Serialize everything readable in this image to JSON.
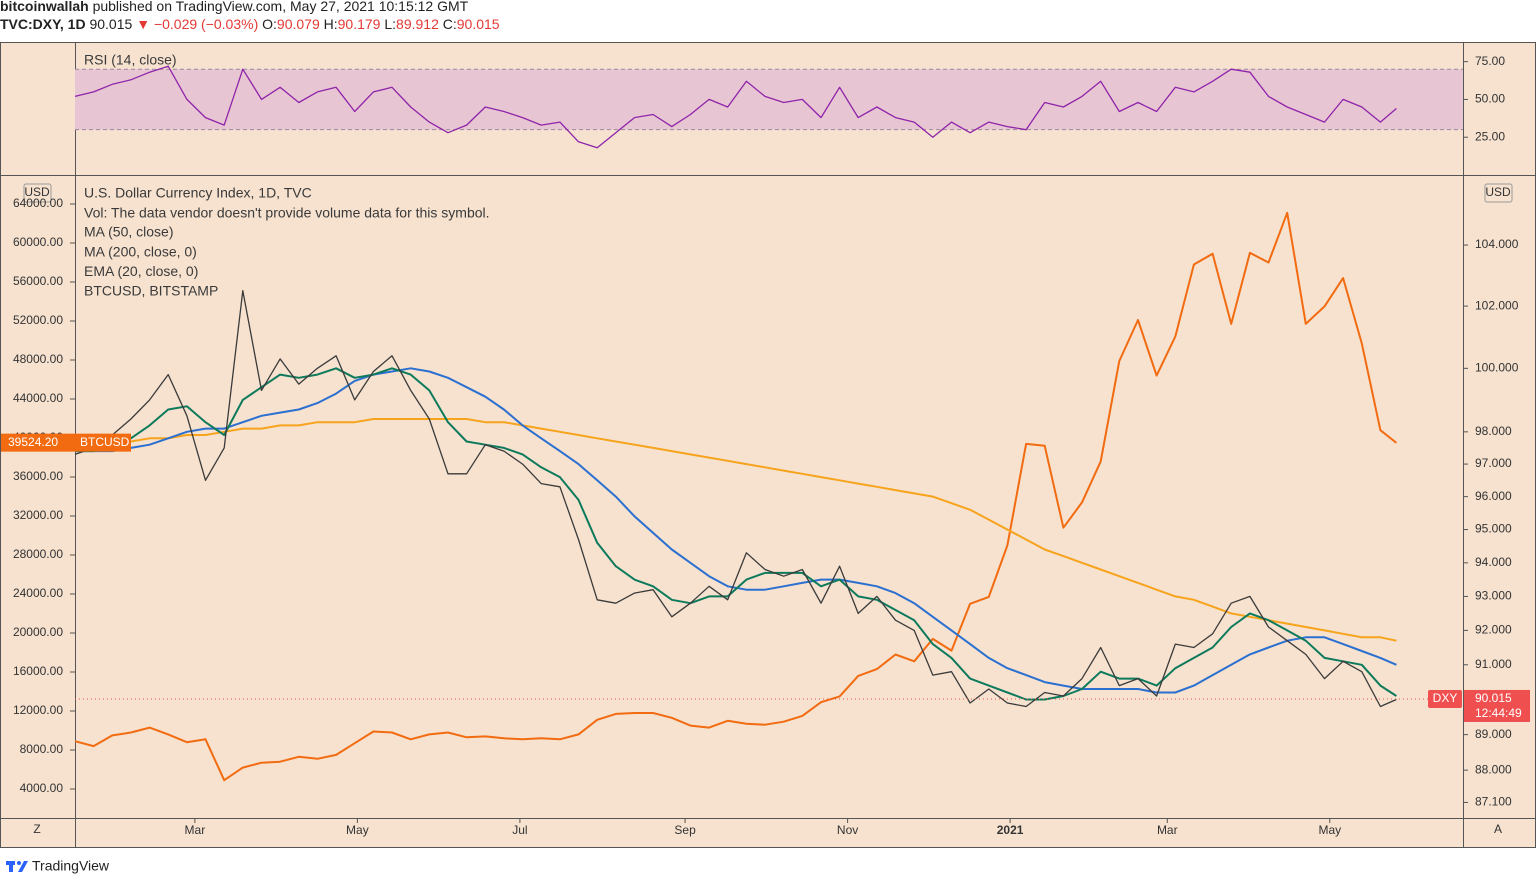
{
  "header": {
    "author": "bitcoinwallah",
    "published": "published on TradingView.com, May 27, 2021 10:15:12 GMT",
    "symbol": "TVC:DXY, 1D",
    "last": 90.015,
    "direction": "▼",
    "change": "−0.029 (−0.03%)",
    "ohlc": [
      {
        "label": "O:",
        "value": 90.079
      },
      {
        "label": "H:",
        "value": 90.179
      },
      {
        "label": "L:",
        "value": 89.912
      },
      {
        "label": "C:",
        "value": 90.015
      }
    ]
  },
  "chart_data": [
    {
      "type": "line",
      "title": "RSI (14, close)",
      "band": [
        30,
        70
      ],
      "band_color": "#e8c5d3",
      "ylim": [
        0,
        88
      ],
      "yticks": [
        {
          "value": 75,
          "label": "75.00"
        },
        {
          "value": 50,
          "label": "50.00"
        },
        {
          "value": 25,
          "label": "25.00"
        }
      ],
      "x": [
        15,
        22,
        29,
        36,
        43,
        50,
        57,
        64,
        71,
        78,
        85,
        92,
        99,
        106,
        113,
        120,
        127,
        134,
        141,
        148,
        155,
        162,
        169,
        176,
        183,
        190,
        197,
        204,
        211,
        218,
        225,
        232,
        239,
        246,
        253,
        260,
        267,
        274,
        281,
        288,
        295,
        302,
        309,
        316,
        323,
        330,
        337,
        344,
        351,
        358,
        365,
        372,
        379,
        386,
        393,
        400,
        407,
        414,
        421,
        428,
        435,
        442,
        449,
        456,
        463,
        470,
        477,
        484,
        491,
        498,
        505,
        511
      ],
      "series": [
        {
          "name": "RSI (14, close)",
          "color": "#8e24aa",
          "values": [
            52,
            55,
            60,
            63,
            68,
            72,
            50,
            38,
            33,
            70,
            50,
            58,
            48,
            55,
            58,
            42,
            55,
            58,
            45,
            35,
            28,
            33,
            45,
            42,
            38,
            33,
            35,
            22,
            18,
            28,
            38,
            40,
            32,
            40,
            50,
            45,
            62,
            52,
            48,
            50,
            38,
            58,
            38,
            45,
            38,
            35,
            25,
            35,
            28,
            35,
            32,
            30,
            48,
            45,
            52,
            62,
            42,
            48,
            42,
            58,
            55,
            62,
            70,
            68,
            52,
            45,
            40,
            35,
            50,
            45,
            35,
            44
          ]
        }
      ]
    },
    {
      "type": "line",
      "title": "U.S. Dollar Currency Index, 1D, TVC",
      "note": "Vol: The data vendor doesn't provide volume data for this symbol.",
      "unit_labels": [
        "USD",
        "USD"
      ],
      "axis_buttons": [
        "Z",
        "A"
      ],
      "y_log": true,
      "grid": false,
      "xlim": [
        15,
        536
      ],
      "xticks": [
        {
          "value": 60,
          "label": "Mar"
        },
        {
          "value": 121,
          "label": "May"
        },
        {
          "value": 182,
          "label": "Jul"
        },
        {
          "value": 244,
          "label": "Sep"
        },
        {
          "value": 305,
          "label": "Nov"
        },
        {
          "value": 366,
          "label": "2021"
        },
        {
          "value": 425,
          "label": "Mar"
        },
        {
          "value": 486,
          "label": "May"
        }
      ],
      "ylim": [
        86.67,
        106.31
      ],
      "yticks": [
        {
          "value": 104,
          "label": "104.000"
        },
        {
          "value": 102,
          "label": "102.000"
        },
        {
          "value": 100,
          "label": "100.000"
        },
        {
          "value": 98,
          "label": "98.000"
        },
        {
          "value": 97,
          "label": "97.000"
        },
        {
          "value": 96,
          "label": "96.000"
        },
        {
          "value": 95,
          "label": "95.000"
        },
        {
          "value": 94,
          "label": "94.000"
        },
        {
          "value": 93,
          "label": "93.000"
        },
        {
          "value": 92,
          "label": "92.000"
        },
        {
          "value": 91,
          "label": "91.000"
        },
        {
          "value": 89,
          "label": "89.000"
        },
        {
          "value": 88,
          "label": "88.000"
        },
        {
          "value": 87.1,
          "label": "87.100"
        }
      ],
      "y2lim": [
        1026,
        66872
      ],
      "y2ticks": [
        {
          "value": 64000,
          "label": "64000.00"
        },
        {
          "value": 60000,
          "label": "60000.00"
        },
        {
          "value": 56000,
          "label": "56000.00"
        },
        {
          "value": 52000,
          "label": "52000.00"
        },
        {
          "value": 48000,
          "label": "48000.00"
        },
        {
          "value": 44000,
          "label": "44000.00"
        },
        {
          "value": 40000,
          "label": "40000.00"
        },
        {
          "value": 36000,
          "label": "36000.00"
        },
        {
          "value": 32000,
          "label": "32000.00"
        },
        {
          "value": 28000,
          "label": "28000.00"
        },
        {
          "value": 24000,
          "label": "24000.00"
        },
        {
          "value": 20000,
          "label": "20000.00"
        },
        {
          "value": 16000,
          "label": "16000.00"
        },
        {
          "value": 12000,
          "label": "12000.00"
        },
        {
          "value": 8000,
          "label": "8000.00"
        },
        {
          "value": 4000,
          "label": "4000.00"
        }
      ],
      "x": [
        15,
        22,
        29,
        36,
        43,
        50,
        57,
        64,
        71,
        78,
        85,
        92,
        99,
        106,
        113,
        120,
        127,
        134,
        141,
        148,
        155,
        162,
        169,
        176,
        183,
        190,
        197,
        204,
        211,
        218,
        225,
        232,
        239,
        246,
        253,
        260,
        267,
        274,
        281,
        288,
        295,
        302,
        309,
        316,
        323,
        330,
        337,
        344,
        351,
        358,
        365,
        372,
        379,
        386,
        393,
        400,
        407,
        414,
        421,
        428,
        435,
        442,
        449,
        456,
        463,
        470,
        477,
        484,
        491,
        498,
        505,
        511
      ],
      "series": [
        {
          "name": "DXY",
          "color": "#3b3b3b",
          "last": 90.015,
          "countdown": "12:44:49",
          "tag_color": "#ef4f4f",
          "values": [
            97.3,
            97.5,
            97.9,
            98.4,
            99.0,
            99.8,
            98.5,
            96.5,
            97.5,
            102.5,
            99.3,
            100.3,
            99.5,
            100.0,
            100.4,
            99.0,
            99.9,
            100.4,
            99.3,
            98.4,
            96.7,
            96.7,
            97.6,
            97.4,
            97.0,
            96.4,
            96.3,
            94.7,
            92.9,
            92.8,
            93.1,
            93.2,
            92.4,
            92.8,
            93.3,
            92.9,
            94.3,
            93.8,
            93.6,
            93.8,
            92.8,
            93.9,
            92.5,
            93.0,
            92.3,
            92.0,
            90.7,
            90.8,
            89.9,
            90.3,
            89.9,
            89.8,
            90.2,
            90.1,
            90.6,
            91.5,
            90.4,
            90.6,
            90.1,
            91.6,
            91.5,
            91.9,
            92.8,
            93.0,
            92.1,
            91.7,
            91.3,
            90.6,
            91.1,
            90.8,
            89.8,
            90.0
          ]
        },
        {
          "name": "MA (50, close)",
          "color": "#2b6fd0",
          "values": [
            97.4,
            97.4,
            97.4,
            97.5,
            97.6,
            97.8,
            98.0,
            98.1,
            98.1,
            98.3,
            98.5,
            98.6,
            98.7,
            98.9,
            99.2,
            99.6,
            99.8,
            99.9,
            100.0,
            99.9,
            99.7,
            99.4,
            99.1,
            98.7,
            98.2,
            97.8,
            97.4,
            97.0,
            96.5,
            96.0,
            95.4,
            94.9,
            94.4,
            94.0,
            93.6,
            93.3,
            93.2,
            93.2,
            93.3,
            93.4,
            93.5,
            93.5,
            93.4,
            93.3,
            93.1,
            92.8,
            92.4,
            92.0,
            91.6,
            91.2,
            90.9,
            90.7,
            90.5,
            90.4,
            90.3,
            90.3,
            90.3,
            90.3,
            90.2,
            90.2,
            90.4,
            90.7,
            91.0,
            91.3,
            91.5,
            91.7,
            91.8,
            91.8,
            91.6,
            91.4,
            91.2,
            91.0
          ]
        },
        {
          "name": "MA (200, close, 0)",
          "color": "#f7a31c",
          "values": [
            97.6,
            97.6,
            97.7,
            97.7,
            97.8,
            97.8,
            97.9,
            97.9,
            98.0,
            98.1,
            98.1,
            98.2,
            98.2,
            98.3,
            98.3,
            98.3,
            98.4,
            98.4,
            98.4,
            98.4,
            98.4,
            98.4,
            98.3,
            98.3,
            98.2,
            98.1,
            98.0,
            97.9,
            97.8,
            97.7,
            97.6,
            97.5,
            97.4,
            97.3,
            97.2,
            97.1,
            97.0,
            96.9,
            96.8,
            96.7,
            96.6,
            96.5,
            96.4,
            96.3,
            96.2,
            96.1,
            96.0,
            95.8,
            95.6,
            95.3,
            95.0,
            94.7,
            94.4,
            94.2,
            94.0,
            93.8,
            93.6,
            93.4,
            93.2,
            93.0,
            92.9,
            92.7,
            92.5,
            92.4,
            92.3,
            92.2,
            92.1,
            92.0,
            91.9,
            91.8,
            91.8,
            91.7
          ]
        },
        {
          "name": "EMA (20, close, 0)",
          "color": "#0e7a5c",
          "values": [
            97.4,
            97.4,
            97.5,
            97.8,
            98.2,
            98.7,
            98.8,
            98.3,
            97.9,
            99.0,
            99.4,
            99.8,
            99.7,
            99.8,
            100.0,
            99.7,
            99.8,
            100.0,
            99.8,
            99.3,
            98.3,
            97.7,
            97.6,
            97.5,
            97.3,
            96.9,
            96.6,
            95.9,
            94.6,
            93.9,
            93.5,
            93.3,
            92.9,
            92.8,
            93.0,
            93.0,
            93.5,
            93.7,
            93.7,
            93.7,
            93.3,
            93.5,
            93.0,
            92.9,
            92.6,
            92.3,
            91.6,
            91.2,
            90.6,
            90.4,
            90.2,
            90.0,
            90.0,
            90.1,
            90.3,
            90.8,
            90.6,
            90.6,
            90.4,
            90.9,
            91.2,
            91.5,
            92.1,
            92.5,
            92.3,
            92.0,
            91.7,
            91.2,
            91.1,
            91.0,
            90.4,
            90.1
          ]
        },
        {
          "name": "BTCUSD, BITSTAMP",
          "tag": "BTCUSD",
          "axis": "y2",
          "color": "#f26b11",
          "last": {
            "value": 39524.2,
            "label": "39524.20"
          },
          "values": [
            8900,
            8400,
            9500,
            9800,
            10300,
            9600,
            8800,
            9100,
            4900,
            6200,
            6700,
            6800,
            7300,
            7100,
            7500,
            8700,
            9900,
            9800,
            9100,
            9600,
            9800,
            9300,
            9400,
            9200,
            9100,
            9200,
            9100,
            9600,
            11100,
            11700,
            11800,
            11800,
            11300,
            10500,
            10300,
            11000,
            10700,
            10600,
            10900,
            11500,
            12900,
            13500,
            15600,
            16300,
            17800,
            17100,
            19400,
            18200,
            23000,
            23700,
            29000,
            39400,
            39200,
            30800,
            33400,
            37600,
            47900,
            52100,
            46400,
            50400,
            57800,
            58900,
            51700,
            59000,
            58000,
            63100,
            51700,
            53500,
            56400,
            49700,
            40800,
            39500
          ]
        }
      ]
    }
  ],
  "footer": {
    "brand": "TradingView"
  }
}
